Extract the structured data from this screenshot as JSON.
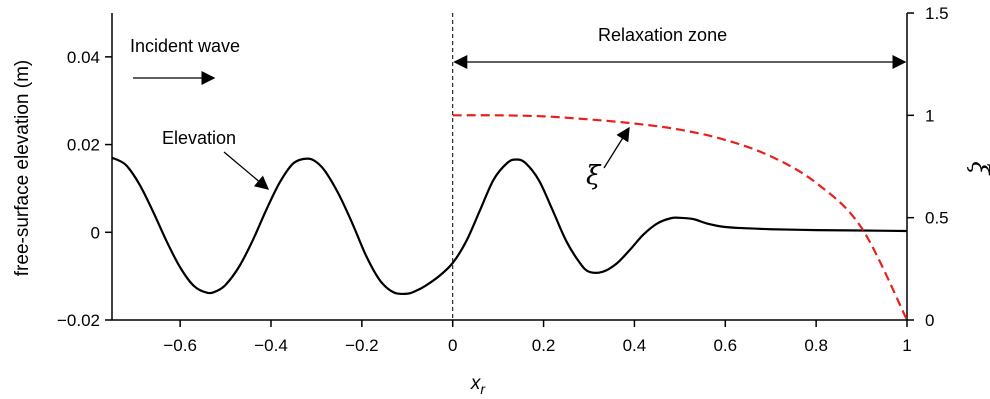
{
  "chart_data": {
    "type": "line",
    "title": "",
    "xlabel": "x",
    "xlabel_sub": "r",
    "ylabel_left": "free-surface elevation (m)",
    "ylabel_right": "ξ",
    "xlim": [
      -0.75,
      1.0
    ],
    "ylim_left": [
      -0.02,
      0.05
    ],
    "ylim_right": [
      0,
      1.5
    ],
    "x_ticks": [
      -0.6,
      -0.4,
      -0.2,
      0,
      0.2,
      0.4,
      0.6,
      0.8,
      1
    ],
    "x_tick_labels": [
      "−0.6",
      "−0.4",
      "−0.2",
      "0",
      "0.2",
      "0.4",
      "0.6",
      "0.8",
      "1"
    ],
    "y_left_ticks": [
      -0.02,
      0,
      0.02,
      0.04
    ],
    "y_left_tick_labels": [
      "−0.02",
      "0",
      "0.02",
      "0.04"
    ],
    "y_right_ticks": [
      0,
      0.5,
      1,
      1.5
    ],
    "y_right_tick_labels": [
      "0",
      "0.5",
      "1",
      "1.5"
    ],
    "grid": false,
    "series": [
      {
        "axis": "left",
        "color": "#000000",
        "style": "solid",
        "x": [
          -0.75,
          -0.72,
          -0.69,
          -0.66,
          -0.63,
          -0.6,
          -0.57,
          -0.54,
          -0.52,
          -0.5,
          -0.47,
          -0.44,
          -0.41,
          -0.38,
          -0.35,
          -0.32,
          -0.3,
          -0.28,
          -0.25,
          -0.22,
          -0.19,
          -0.16,
          -0.13,
          -0.1,
          -0.08,
          -0.06,
          -0.03,
          0.0,
          0.03,
          0.06,
          0.09,
          0.12,
          0.14,
          0.16,
          0.19,
          0.22,
          0.25,
          0.28,
          0.3,
          0.33,
          0.36,
          0.39,
          0.42,
          0.45,
          0.48,
          0.5,
          0.53,
          0.56,
          0.6,
          0.65,
          0.7,
          0.8,
          0.9,
          1.0
        ],
        "y": [
          0.017,
          0.0154,
          0.011,
          0.0048,
          -0.002,
          -0.008,
          -0.0122,
          -0.0138,
          -0.0134,
          -0.012,
          -0.0078,
          -0.0018,
          0.0052,
          0.0115,
          0.0158,
          0.0168,
          0.016,
          0.0138,
          0.0085,
          0.0018,
          -0.0055,
          -0.011,
          -0.0137,
          -0.014,
          -0.0133,
          -0.0122,
          -0.01,
          -0.007,
          -0.002,
          0.005,
          0.012,
          0.0158,
          0.0166,
          0.0158,
          0.0118,
          0.005,
          -0.002,
          -0.007,
          -0.009,
          -0.009,
          -0.0072,
          -0.004,
          -0.0005,
          0.002,
          0.0032,
          0.0033,
          0.003,
          0.002,
          0.0012,
          0.0009,
          0.0007,
          0.0005,
          0.0004,
          0.0003
        ]
      },
      {
        "axis": "right",
        "color": "#e8201c",
        "style": "dashed",
        "x": [
          0.0,
          0.1,
          0.2,
          0.3,
          0.4,
          0.5,
          0.6,
          0.7,
          0.8,
          0.9,
          1.0
        ],
        "y": [
          1.0,
          1.0,
          0.995,
          0.98,
          0.96,
          0.93,
          0.88,
          0.8,
          0.67,
          0.45,
          0.0
        ]
      }
    ],
    "annotations": {
      "incident_wave": "Incident wave",
      "relaxation_zone": "Relaxation zone",
      "elevation": "Elevation",
      "xi": "ξ"
    }
  }
}
